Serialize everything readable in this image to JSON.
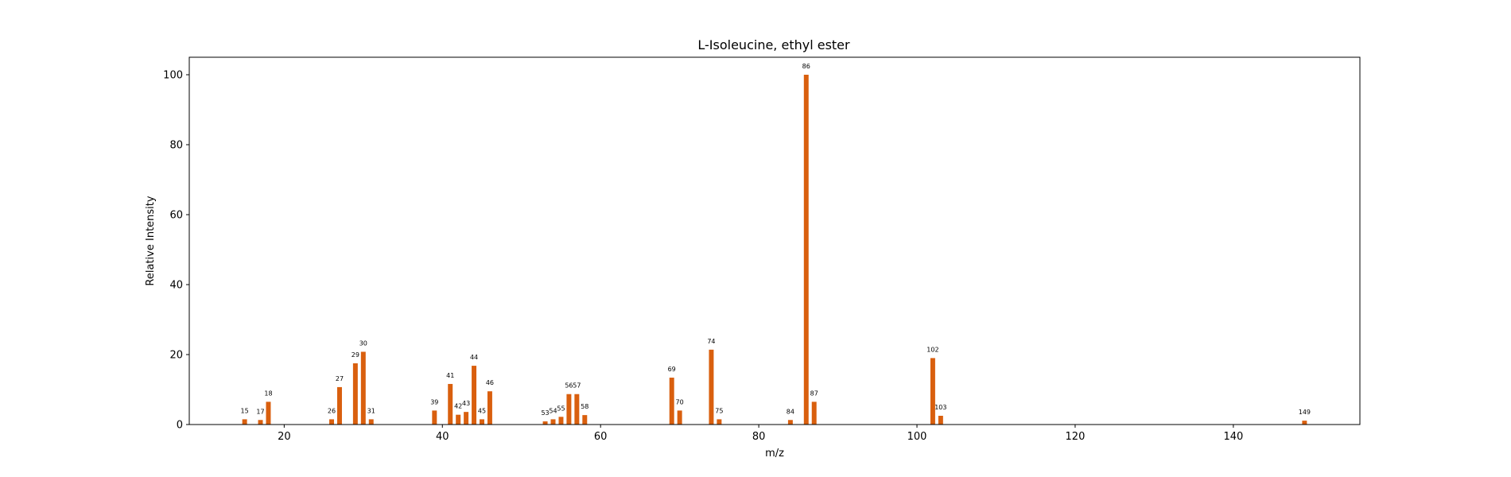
{
  "chart_data": {
    "type": "bar",
    "title": "L-Isoleucine, ethyl ester",
    "xlabel": "m/z",
    "ylabel": "Relative Intensity",
    "xlim": [
      8,
      156
    ],
    "ylim": [
      0,
      105
    ],
    "xticks": [
      20,
      40,
      60,
      80,
      100,
      120,
      140
    ],
    "yticks": [
      0,
      20,
      40,
      60,
      80,
      100
    ],
    "grid": false,
    "color": "#d95f0e",
    "points": [
      {
        "x": 15,
        "y": 1.5
      },
      {
        "x": 17,
        "y": 1.3
      },
      {
        "x": 18,
        "y": 6.5
      },
      {
        "x": 26,
        "y": 1.5
      },
      {
        "x": 27,
        "y": 10.7
      },
      {
        "x": 29,
        "y": 17.5
      },
      {
        "x": 30,
        "y": 20.8
      },
      {
        "x": 31,
        "y": 1.5
      },
      {
        "x": 39,
        "y": 4.0
      },
      {
        "x": 41,
        "y": 11.6
      },
      {
        "x": 42,
        "y": 2.8
      },
      {
        "x": 43,
        "y": 3.6
      },
      {
        "x": 44,
        "y": 16.8
      },
      {
        "x": 45,
        "y": 1.5
      },
      {
        "x": 46,
        "y": 9.5
      },
      {
        "x": 53,
        "y": 0.9
      },
      {
        "x": 54,
        "y": 1.5
      },
      {
        "x": 55,
        "y": 2.2
      },
      {
        "x": 56,
        "y": 8.7
      },
      {
        "x": 57,
        "y": 8.7
      },
      {
        "x": 58,
        "y": 2.7
      },
      {
        "x": 69,
        "y": 13.4
      },
      {
        "x": 70,
        "y": 4.0
      },
      {
        "x": 74,
        "y": 21.4
      },
      {
        "x": 75,
        "y": 1.5
      },
      {
        "x": 84,
        "y": 1.3
      },
      {
        "x": 86,
        "y": 100
      },
      {
        "x": 87,
        "y": 6.5
      },
      {
        "x": 102,
        "y": 19.0
      },
      {
        "x": 103,
        "y": 2.5
      },
      {
        "x": 149,
        "y": 1.1
      }
    ]
  }
}
